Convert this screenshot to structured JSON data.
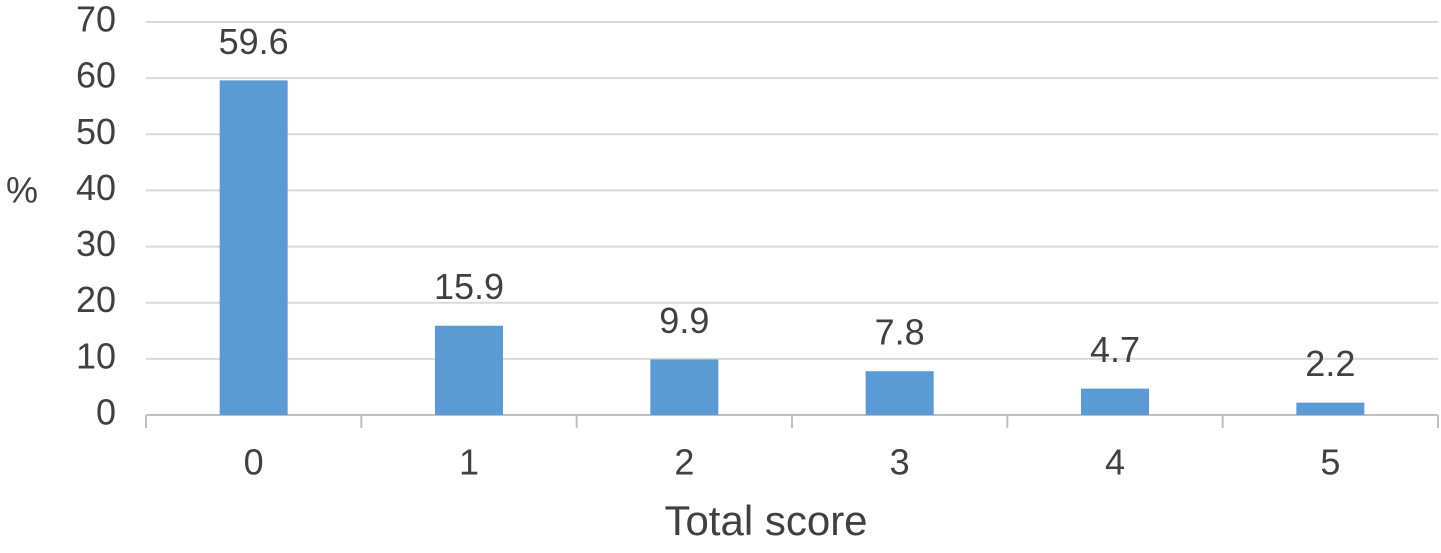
{
  "chart_data": {
    "type": "bar",
    "y_label": "%",
    "x_label": "Total score",
    "categories": [
      "0",
      "1",
      "2",
      "3",
      "4",
      "5"
    ],
    "values": [
      59.6,
      15.9,
      9.9,
      7.8,
      4.7,
      2.2
    ],
    "color": "#5b9bd5",
    "ylim": [
      0,
      70
    ],
    "yticks": [
      0,
      10,
      20,
      30,
      40,
      50,
      60,
      70
    ],
    "grid": true,
    "data_labels": true
  }
}
